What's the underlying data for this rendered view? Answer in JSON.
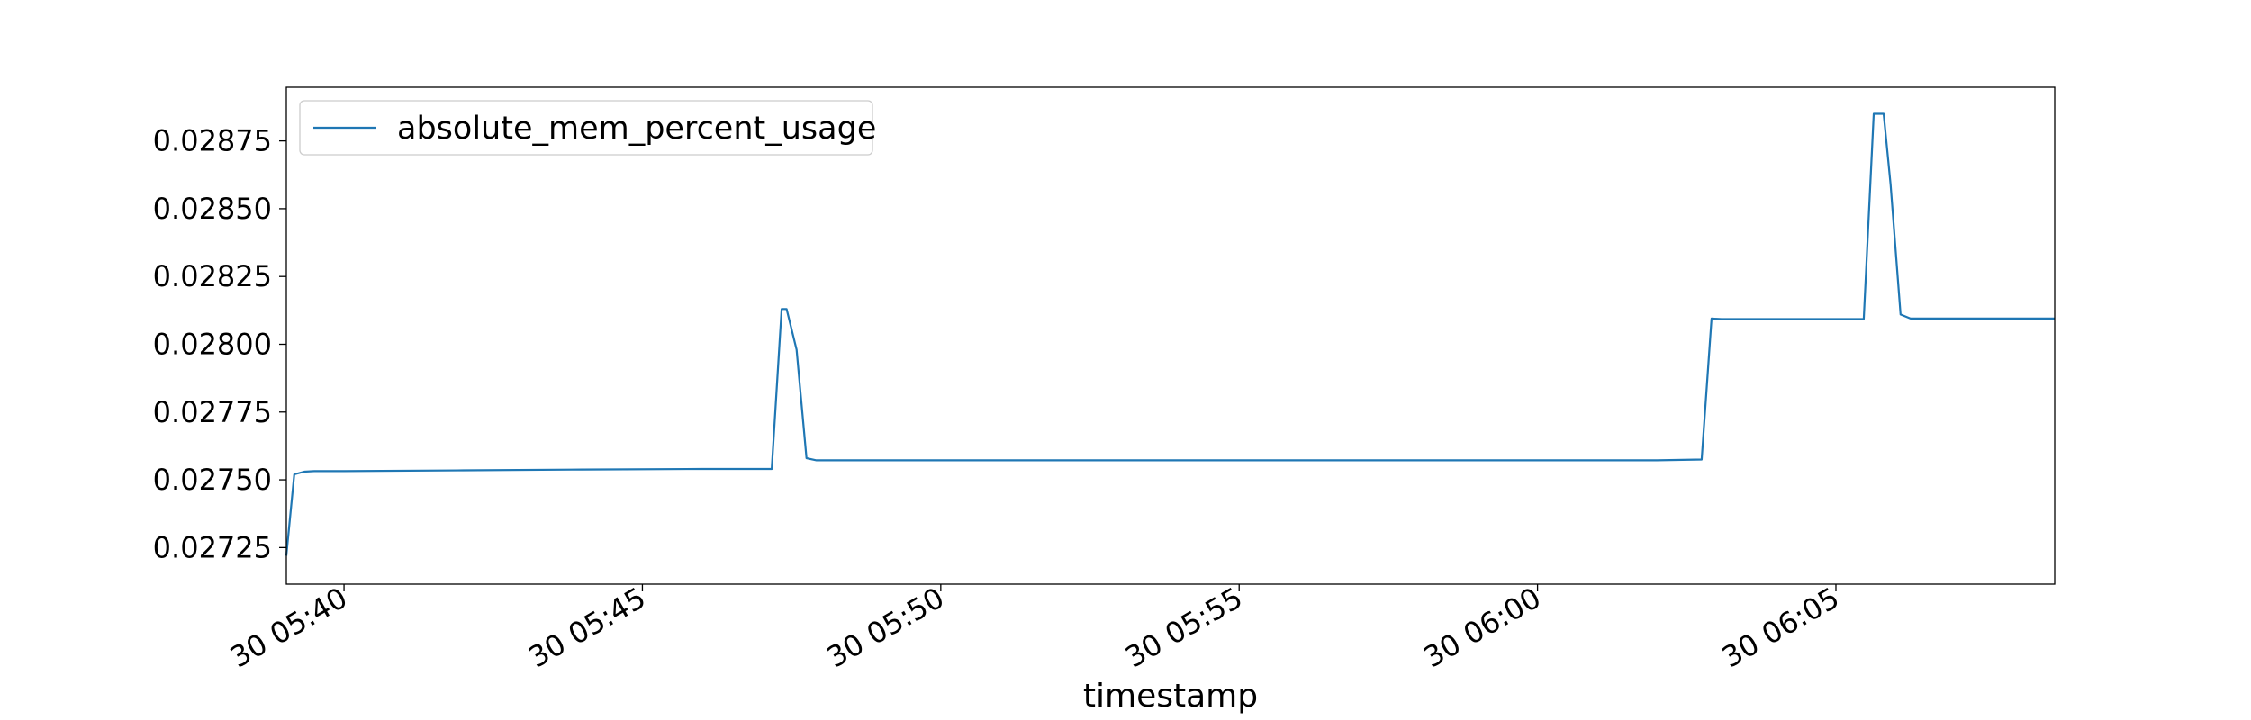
{
  "chart_data": {
    "type": "line",
    "title": "",
    "xlabel": "timestamp",
    "ylabel": "",
    "grid": false,
    "legend": {
      "position": "top-left",
      "entries": [
        "absolute_mem_percent_usage"
      ]
    },
    "xlim": [
      "30 05:39:02",
      "30 06:08:40"
    ],
    "ylim": [
      0.027115,
      0.028948
    ],
    "x_ticks": [
      "30 05:40",
      "30 05:45",
      "30 05:50",
      "30 05:55",
      "30 06:00",
      "30 06:05"
    ],
    "y_ticks": [
      "0.02725",
      "0.02750",
      "0.02775",
      "0.02800",
      "0.02825",
      "0.02850",
      "0.02875"
    ],
    "series": [
      {
        "name": "absolute_mem_percent_usage",
        "color": "#1f77b4",
        "x": [
          "30 05:39:02",
          "30 05:39:10",
          "30 05:39:20",
          "30 05:39:30",
          "30 05:40:00",
          "30 05:42:00",
          "30 05:44:00",
          "30 05:46:00",
          "30 05:47:00",
          "30 05:47:10",
          "30 05:47:20",
          "30 05:47:25",
          "30 05:47:35",
          "30 05:47:45",
          "30 05:47:55",
          "30 05:48:05",
          "30 05:50:00",
          "30 05:52:00",
          "30 05:54:00",
          "30 05:56:00",
          "30 05:58:00",
          "30 06:00:00",
          "30 06:02:00",
          "30 06:02:45",
          "30 06:02:55",
          "30 06:03:05",
          "30 06:04:00",
          "30 06:05:00",
          "30 06:05:28",
          "30 06:05:38",
          "30 06:05:48",
          "30 06:05:55",
          "30 06:06:05",
          "30 06:06:15",
          "30 06:07:00",
          "30 06:08:00",
          "30 06:08:40"
        ],
        "values": [
          0.02722,
          0.02752,
          0.02753,
          0.027532,
          0.027532,
          0.027535,
          0.027538,
          0.02754,
          0.02754,
          0.02754,
          0.02813,
          0.02813,
          0.02798,
          0.02758,
          0.027572,
          0.027572,
          0.027572,
          0.027572,
          0.027572,
          0.027572,
          0.027572,
          0.027572,
          0.027572,
          0.027575,
          0.028095,
          0.028093,
          0.028093,
          0.028093,
          0.028093,
          0.02885,
          0.02885,
          0.02859,
          0.02811,
          0.028095,
          0.028095,
          0.028095,
          0.028095
        ]
      }
    ]
  }
}
